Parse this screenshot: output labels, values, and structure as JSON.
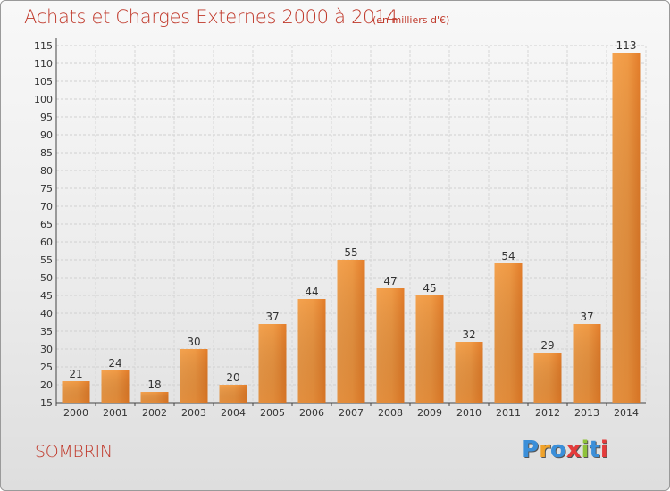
{
  "chart_data": {
    "type": "bar",
    "title": "Achats et Charges Externes 2000 à 2014",
    "subtitle": "(en milliers d'€)",
    "categories": [
      "2000",
      "2001",
      "2002",
      "2003",
      "2004",
      "2005",
      "2006",
      "2007",
      "2008",
      "2009",
      "2010",
      "2011",
      "2012",
      "2013",
      "2014"
    ],
    "values": [
      21,
      24,
      18,
      30,
      20,
      37,
      44,
      55,
      47,
      45,
      32,
      54,
      29,
      37,
      113
    ],
    "ylim": [
      15,
      115
    ],
    "yticks": [
      15,
      20,
      25,
      30,
      35,
      40,
      45,
      50,
      55,
      60,
      65,
      70,
      75,
      80,
      85,
      90,
      95,
      100,
      105,
      110,
      115
    ],
    "grid": true,
    "bar_color": "#e98b3a"
  },
  "footer": {
    "commune": "SOMBRIN",
    "logo_letters": [
      "P",
      "r",
      "o",
      "x",
      "i",
      "t",
      "i"
    ],
    "logo_colors": [
      "#3b8fd9",
      "#f0a22a",
      "#3b8fd9",
      "#e43b3b",
      "#8fc33b",
      "#3b8fd9",
      "#e43b3b"
    ]
  }
}
